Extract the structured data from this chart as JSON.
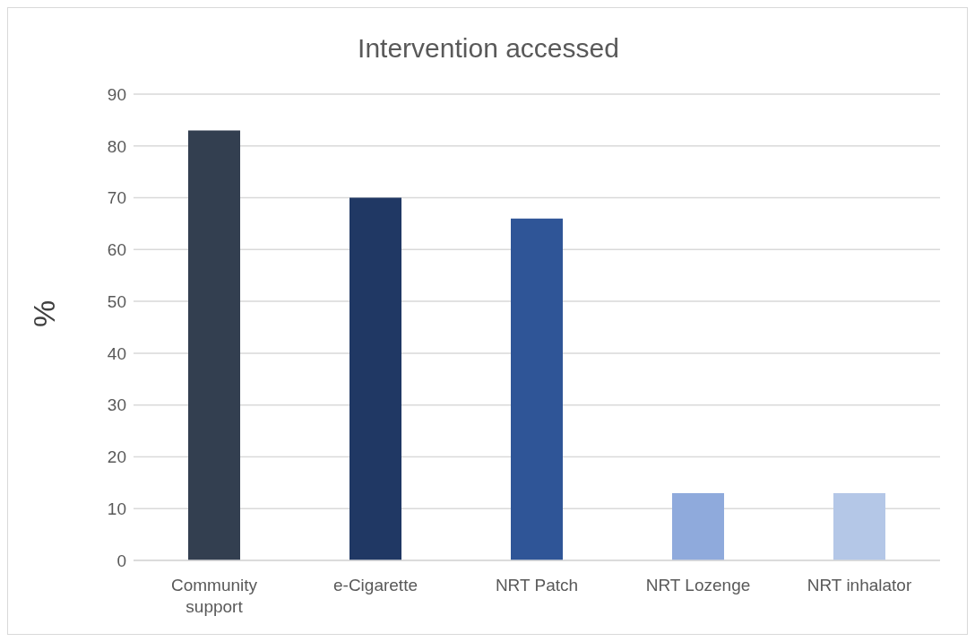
{
  "chart_data": {
    "type": "bar",
    "title": "Intervention accessed",
    "ylabel": "%",
    "categories": [
      "Community support",
      "e-Cigarette",
      "NRT Patch",
      "NRT Lozenge",
      "NRT inhalator"
    ],
    "values": [
      83,
      70,
      66,
      13,
      13
    ],
    "colors": [
      "#333f50",
      "#203864",
      "#2f5597",
      "#8faadc",
      "#b4c7e7"
    ],
    "ylim": [
      0,
      90
    ],
    "yticks": [
      0,
      10,
      20,
      30,
      40,
      50,
      60,
      70,
      80,
      90
    ],
    "grid": "y",
    "legend": false
  }
}
